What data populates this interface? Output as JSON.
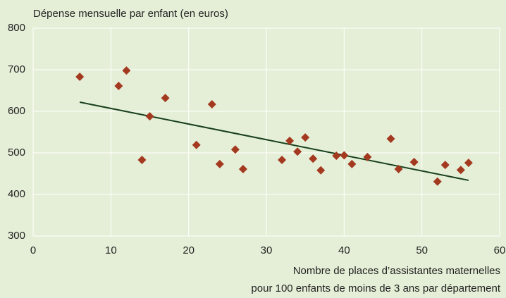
{
  "chart_data": {
    "type": "scatter",
    "title": "Dépense mensuelle par enfant (en euros)",
    "x_label": [
      "Nombre de places d’assistantes maternelles",
      "pour 100 enfants de moins de 3 ans par département"
    ],
    "x": [
      6,
      11,
      12,
      14,
      15,
      17,
      21,
      23,
      24,
      26,
      27,
      32,
      33,
      34,
      35,
      36,
      37,
      39,
      40,
      41,
      43,
      46,
      47,
      49,
      52,
      53,
      55,
      56
    ],
    "values": [
      683,
      661,
      698,
      483,
      588,
      632,
      519,
      617,
      473,
      508,
      461,
      483,
      529,
      503,
      537,
      486,
      458,
      493,
      494,
      473,
      490,
      534,
      461,
      478,
      431,
      471,
      459,
      476
    ],
    "color": "#a3391f",
    "trendline": {
      "x": [
        6,
        56
      ],
      "values": [
        622,
        434
      ],
      "color": "#17401c"
    },
    "xlim": [
      0,
      60
    ],
    "xticks": [
      0,
      10,
      20,
      30,
      40,
      50,
      60
    ],
    "ylim": [
      300,
      800
    ],
    "yticks": [
      300,
      400,
      500,
      600,
      700,
      800
    ],
    "grid": true
  }
}
